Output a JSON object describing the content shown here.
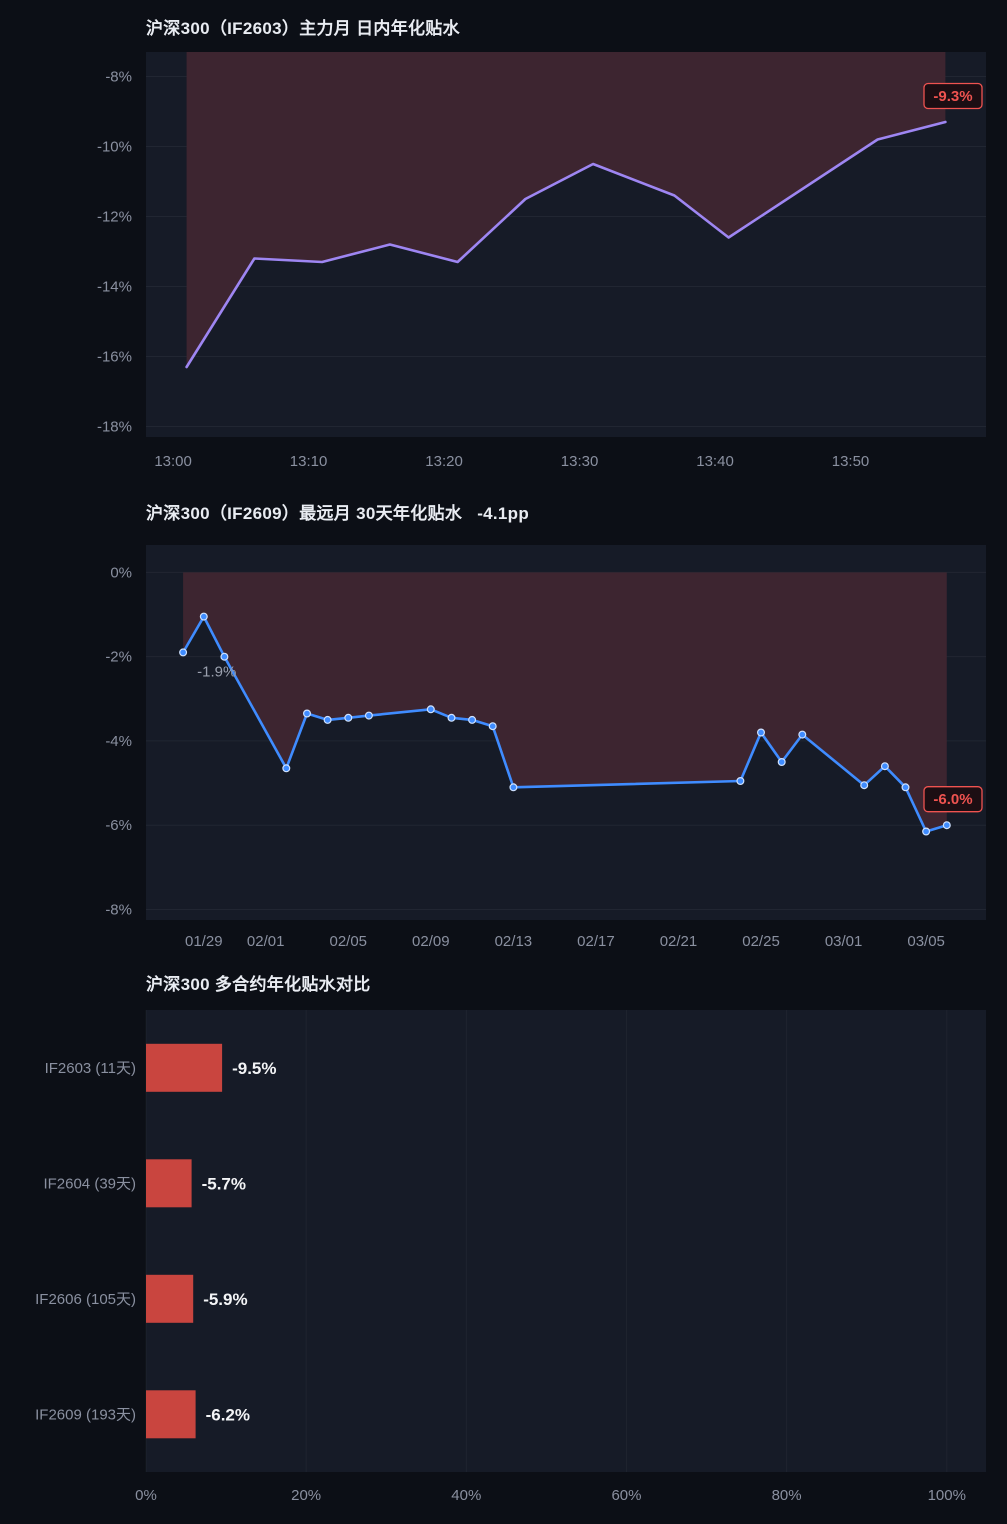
{
  "page": {
    "background": "#0c0f16",
    "panel_color": "#161b27"
  },
  "chart_data": [
    {
      "type": "line",
      "title": "沪深300（IF2603）主力月 日内年化贴水",
      "x_unit": "minutes after 13:00",
      "ylabel": "annualized basis %",
      "xlim": [
        -2,
        60
      ],
      "ylim": [
        -18.3,
        -7.3
      ],
      "grid": true,
      "x_ticks": [
        {
          "v": 0,
          "label": "13:00"
        },
        {
          "v": 10,
          "label": "13:10"
        },
        {
          "v": 20,
          "label": "13:20"
        },
        {
          "v": 30,
          "label": "13:30"
        },
        {
          "v": 40,
          "label": "13:40"
        },
        {
          "v": 50,
          "label": "13:50"
        }
      ],
      "y_ticks": [
        {
          "v": -8,
          "label": "-8%"
        },
        {
          "v": -10,
          "label": "-10%"
        },
        {
          "v": -12,
          "label": "-12%"
        },
        {
          "v": -14,
          "label": "-14%"
        },
        {
          "v": -16,
          "label": "-16%"
        },
        {
          "v": -18,
          "label": "-18%"
        }
      ],
      "points": [
        {
          "x": 1,
          "v": -16.3
        },
        {
          "x": 6,
          "v": -13.2
        },
        {
          "x": 11,
          "v": -13.3
        },
        {
          "x": 16,
          "v": -12.8
        },
        {
          "x": 21,
          "v": -13.3
        },
        {
          "x": 26,
          "v": -11.5
        },
        {
          "x": 31,
          "v": -10.5
        },
        {
          "x": 37,
          "v": -11.4
        },
        {
          "x": 41,
          "v": -12.6
        },
        {
          "x": 52,
          "v": -9.8
        },
        {
          "x": 57,
          "v": -9.3
        }
      ],
      "markers": false,
      "fill_to": "top",
      "badge": {
        "text": "-9.3%"
      },
      "colors": {
        "panel": "#161b27",
        "line": "#9e86f2",
        "fill": "#3d2530",
        "badge": "#ef5350",
        "badge_bg": "#1c0e13",
        "marker_fill": "#cfe2ff"
      }
    },
    {
      "type": "line",
      "title": "沪深300（IF2609）最远月 30天年化贴水   -4.1pp",
      "x_unit": "days since 01/28",
      "ylabel": "30d annualized basis %",
      "xlim": [
        -1.8,
        38.9
      ],
      "ylim": [
        -8.25,
        0.65
      ],
      "grid": true,
      "x_ticks": [
        {
          "v": 1,
          "label": "01/29"
        },
        {
          "v": 4,
          "label": "02/01"
        },
        {
          "v": 8,
          "label": "02/05"
        },
        {
          "v": 12,
          "label": "02/09"
        },
        {
          "v": 16,
          "label": "02/13"
        },
        {
          "v": 20,
          "label": "02/17"
        },
        {
          "v": 24,
          "label": "02/21"
        },
        {
          "v": 28,
          "label": "02/25"
        },
        {
          "v": 32,
          "label": "03/01"
        },
        {
          "v": 36,
          "label": "03/05"
        }
      ],
      "y_ticks": [
        {
          "v": 0,
          "label": "0%"
        },
        {
          "v": -2,
          "label": "-2%"
        },
        {
          "v": -4,
          "label": "-4%"
        },
        {
          "v": -6,
          "label": "-6%"
        },
        {
          "v": -8,
          "label": "-8%"
        }
      ],
      "points": [
        {
          "date": "01/28",
          "x": 0,
          "v": -1.9
        },
        {
          "date": "01/29",
          "x": 1,
          "v": -1.05
        },
        {
          "date": "01/30",
          "x": 2,
          "v": -2.0
        },
        {
          "date": "02/02",
          "x": 5,
          "v": -4.65
        },
        {
          "date": "02/03",
          "x": 6,
          "v": -3.35
        },
        {
          "date": "02/04",
          "x": 7,
          "v": -3.5
        },
        {
          "date": "02/05",
          "x": 8,
          "v": -3.45
        },
        {
          "date": "02/06",
          "x": 9,
          "v": -3.4
        },
        {
          "date": "02/09",
          "x": 12,
          "v": -3.25
        },
        {
          "date": "02/10",
          "x": 13,
          "v": -3.45
        },
        {
          "date": "02/11",
          "x": 14,
          "v": -3.5
        },
        {
          "date": "02/12",
          "x": 15,
          "v": -3.65
        },
        {
          "date": "02/13",
          "x": 16,
          "v": -5.1
        },
        {
          "date": "02/24",
          "x": 27,
          "v": -4.95
        },
        {
          "date": "02/25",
          "x": 28,
          "v": -3.8
        },
        {
          "date": "02/26",
          "x": 29,
          "v": -4.5
        },
        {
          "date": "02/27",
          "x": 30,
          "v": -3.85
        },
        {
          "date": "03/02",
          "x": 33,
          "v": -5.05
        },
        {
          "date": "03/03",
          "x": 34,
          "v": -4.6
        },
        {
          "date": "03/04",
          "x": 35,
          "v": -5.1
        },
        {
          "date": "03/05",
          "x": 36,
          "v": -6.15
        },
        {
          "date": "03/06",
          "x": 37,
          "v": -6.0
        }
      ],
      "markers": true,
      "fill_to": 0,
      "annotation": {
        "text": "-1.9%",
        "x": 0,
        "v": -1.9,
        "dx": 14,
        "dy": 24
      },
      "badge": {
        "text": "-6.0%"
      },
      "colors": {
        "panel": "#161b27",
        "line": "#3f8cff",
        "fill": "#3d2530",
        "badge": "#ef5350",
        "badge_bg": "#1c0e13",
        "marker_fill": "#cfe2ff"
      }
    },
    {
      "type": "bar",
      "title": "沪深300 多合约年化贴水对比",
      "orientation": "horizontal",
      "categories": [
        "IF2603 (11天)",
        "IF2604 (39天)",
        "IF2606 (105天)",
        "IF2609 (193天)"
      ],
      "values": [
        -9.5,
        -5.7,
        -5.9,
        -6.2
      ],
      "value_labels": [
        "-9.5%",
        "-5.7%",
        "-5.9%",
        "-6.2%"
      ],
      "xlim": [
        0,
        104.9
      ],
      "x_ticks": [
        {
          "v": 0,
          "label": "0%"
        },
        {
          "v": 20,
          "label": "20%"
        },
        {
          "v": 40,
          "label": "40%"
        },
        {
          "v": 60,
          "label": "60%"
        },
        {
          "v": 80,
          "label": "80%"
        },
        {
          "v": 100,
          "label": "100%"
        }
      ],
      "colors": {
        "panel": "#161b27",
        "bar": "#c9453f",
        "value_label": "#f3f4f6"
      }
    }
  ]
}
